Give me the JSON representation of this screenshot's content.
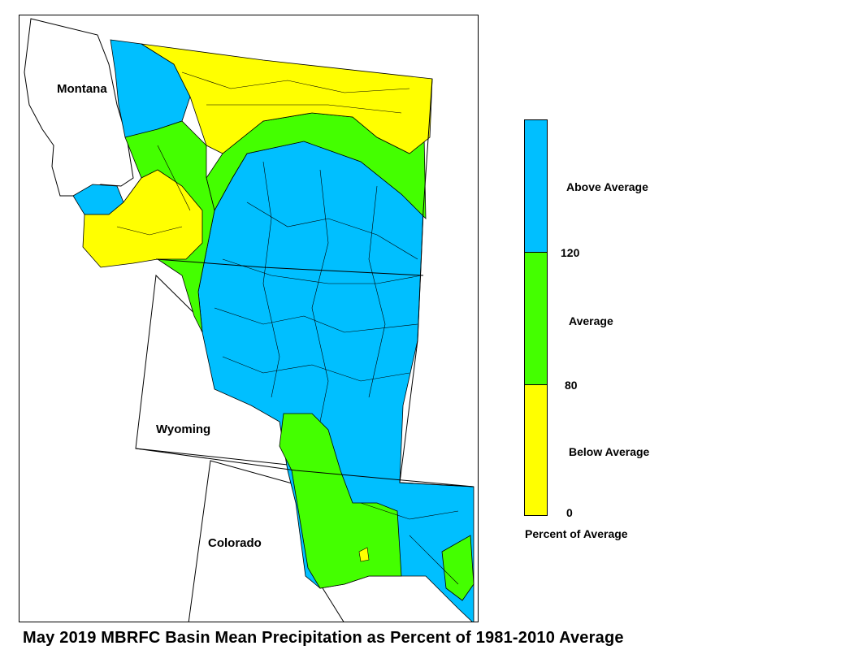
{
  "map": {
    "title": "May 2019 MBRFC Basin Mean Precipitation as Percent of 1981-2010 Average",
    "state_labels": {
      "montana": "Montana",
      "wyoming": "Wyoming",
      "colorado": "Colorado"
    }
  },
  "legend": {
    "categories": [
      {
        "label": "Above Average",
        "color": "#00bfff"
      },
      {
        "label": "Average",
        "color": "#44ff00"
      },
      {
        "label": "Below Average",
        "color": "#ffff00"
      }
    ],
    "breaks": {
      "upper": "120",
      "middle": "80",
      "lower": "0"
    },
    "caption": "Percent of Average"
  }
}
